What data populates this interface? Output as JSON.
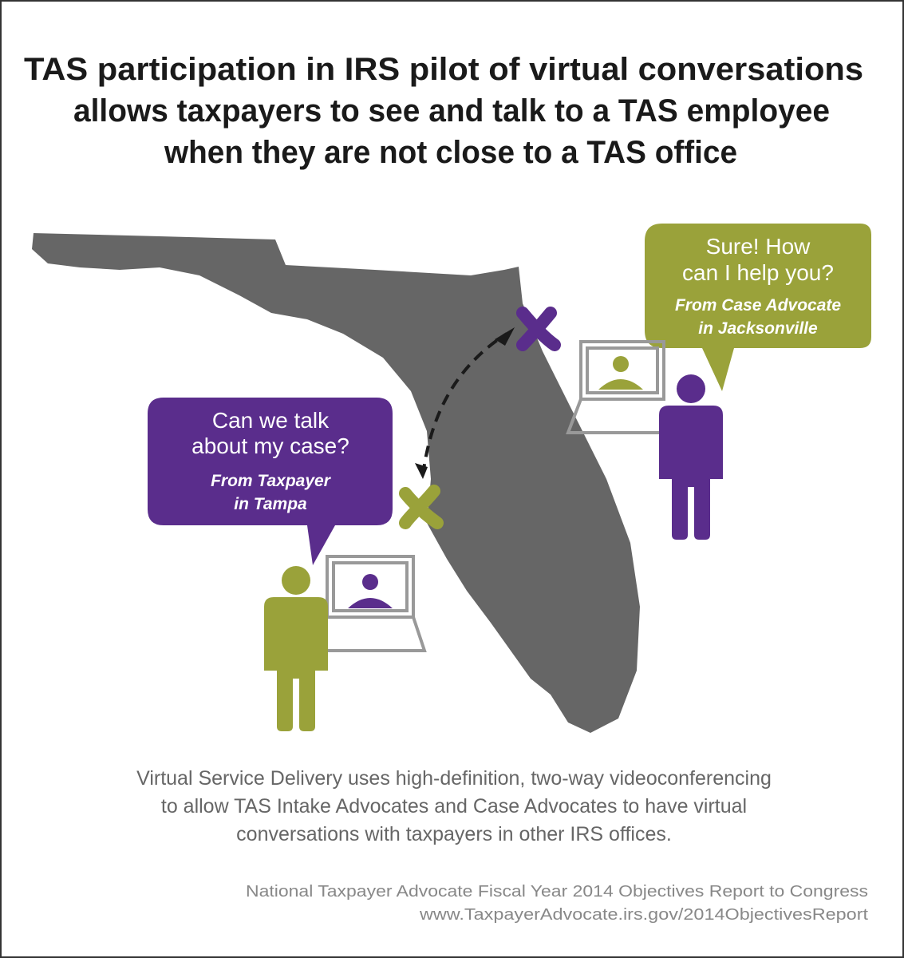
{
  "title": {
    "lines": [
      "TAS participation in IRS pilot of virtual conversations",
      "allows taxpayers to see and talk to a TAS employee",
      "when they are not close to a TAS office"
    ]
  },
  "advocate_bubble": {
    "message": [
      "Sure! How",
      "can I help you?"
    ],
    "from": [
      "From Case Advocate",
      "in Jacksonville"
    ]
  },
  "taxpayer_bubble": {
    "message": [
      "Can we talk",
      "about my case?"
    ],
    "from": [
      "From Taxpayer",
      "in Tampa"
    ]
  },
  "caption": {
    "lines": [
      "Virtual Service Delivery uses high-definition, two-way videoconferencing",
      "to allow TAS Intake Advocates and Case Advocates to have virtual",
      "conversations with taxpayers in other IRS offices."
    ]
  },
  "source": {
    "lines": [
      "National Taxpayer Advocate Fiscal Year 2014 Objectives Report to Congress",
      "www.TaxpayerAdvocate.irs.gov/2014ObjectivesReport"
    ]
  }
}
